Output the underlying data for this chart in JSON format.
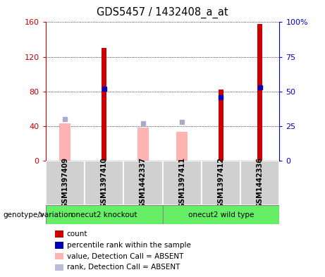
{
  "title": "GDS5457 / 1432408_a_at",
  "samples": [
    "GSM1397409",
    "GSM1397410",
    "GSM1442337",
    "GSM1397411",
    "GSM1397412",
    "GSM1442336"
  ],
  "red_bars": [
    null,
    130,
    null,
    null,
    82,
    158
  ],
  "pink_bars": [
    43,
    null,
    38,
    33,
    null,
    null
  ],
  "blue_squares_pct": [
    null,
    52,
    null,
    null,
    46,
    53
  ],
  "lavender_squares_pct": [
    30,
    null,
    27,
    28,
    null,
    null
  ],
  "ylim_left": [
    0,
    160
  ],
  "ylim_right": [
    0,
    100
  ],
  "yticks_left": [
    0,
    40,
    80,
    120,
    160
  ],
  "ytick_labels_left": [
    "0",
    "40",
    "80",
    "120",
    "160"
  ],
  "yticks_right": [
    0,
    25,
    50,
    75,
    100
  ],
  "ytick_labels_right": [
    "0",
    "25",
    "50",
    "75",
    "100%"
  ],
  "left_axis_color": "#cc0000",
  "right_axis_color": "#0000cc",
  "legend_labels": [
    "count",
    "percentile rank within the sample",
    "value, Detection Call = ABSENT",
    "rank, Detection Call = ABSENT"
  ],
  "legend_colors": [
    "#cc0000",
    "#0000bb",
    "#ffb3b3",
    "#bbbbdd"
  ],
  "genotype_label": "genotype/variation",
  "group1_label": "onecut2 knockout",
  "group2_label": "onecut2 wild type",
  "group_color": "#66ee66"
}
